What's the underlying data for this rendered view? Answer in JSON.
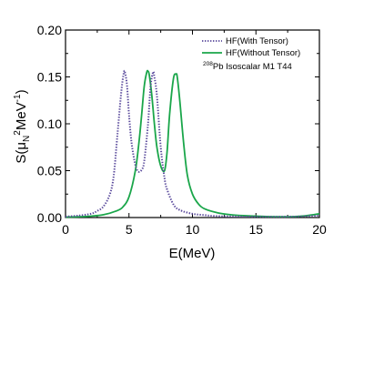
{
  "chart_data": {
    "type": "line",
    "xlabel": "E(MeV)",
    "ylabel_parts": {
      "pre": "S(μ",
      "sub": "N",
      "sup1": "2",
      "mid": "MeV",
      "sup2": "-1",
      "post": ")"
    },
    "xlim": [
      0,
      20
    ],
    "ylim": [
      0,
      0.2
    ],
    "xticks": [
      0,
      5,
      10,
      15,
      20
    ],
    "yticks": [
      0,
      0.05,
      0.1,
      0.15,
      0.2
    ],
    "xtick_labels": [
      "0",
      "5",
      "10",
      "15",
      "20"
    ],
    "ytick_labels": [
      "0.00",
      "0.05",
      "0.10",
      "0.15",
      "0.20"
    ],
    "grid": false,
    "legend_position": "top-right",
    "annotation": {
      "sup": "208",
      "text": "Pb  Isoscalar M1    T44"
    },
    "series": [
      {
        "name": "HF(With Tensor)",
        "color": "#5a4a9c",
        "style": "dotted",
        "x": [
          0,
          1,
          2,
          2.5,
          3,
          3.5,
          3.8,
          4.1,
          4.4,
          4.6,
          4.7,
          4.85,
          5.0,
          5.2,
          5.5,
          5.75,
          6.0,
          6.2,
          6.5,
          6.7,
          6.9,
          7.0,
          7.2,
          7.5,
          7.8,
          8.0,
          8.5,
          9,
          10,
          11,
          12,
          14,
          16,
          18,
          19,
          20
        ],
        "y": [
          0.001,
          0.002,
          0.004,
          0.007,
          0.012,
          0.025,
          0.045,
          0.09,
          0.135,
          0.155,
          0.154,
          0.14,
          0.11,
          0.08,
          0.056,
          0.049,
          0.051,
          0.06,
          0.1,
          0.14,
          0.155,
          0.15,
          0.13,
          0.075,
          0.042,
          0.03,
          0.014,
          0.008,
          0.004,
          0.0025,
          0.0015,
          0.001,
          0.0008,
          0.001,
          0.0015,
          0.002
        ]
      },
      {
        "name": "HF(Without Tensor)",
        "color": "#1aa64a",
        "style": "solid",
        "x": [
          0,
          1,
          2,
          3,
          4,
          4.5,
          5,
          5.5,
          5.8,
          6.0,
          6.2,
          6.4,
          6.5,
          6.6,
          6.8,
          7.0,
          7.2,
          7.5,
          7.8,
          8.0,
          8.2,
          8.5,
          8.7,
          8.8,
          9.0,
          9.3,
          9.6,
          10,
          10.5,
          11,
          12,
          13,
          14,
          16,
          18,
          19,
          20
        ],
        "y": [
          0.0005,
          0.0008,
          0.0015,
          0.003,
          0.007,
          0.011,
          0.022,
          0.05,
          0.082,
          0.11,
          0.14,
          0.155,
          0.156,
          0.152,
          0.13,
          0.1,
          0.075,
          0.055,
          0.05,
          0.07,
          0.11,
          0.148,
          0.153,
          0.15,
          0.125,
          0.08,
          0.045,
          0.025,
          0.014,
          0.009,
          0.005,
          0.003,
          0.002,
          0.001,
          0.001,
          0.002,
          0.004
        ]
      }
    ]
  }
}
